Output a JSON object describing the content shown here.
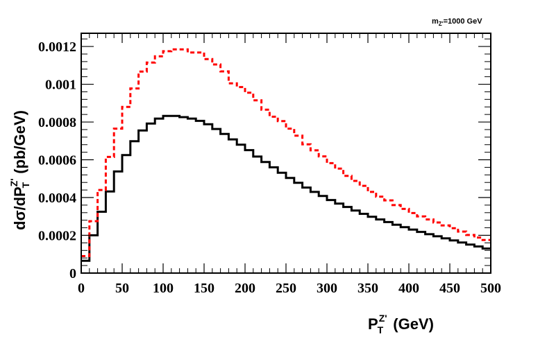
{
  "chart_data": {
    "type": "line",
    "style": "step-histogram",
    "annotation": {
      "main": "m",
      "sub": "Z'",
      "rest": "=1000 GeV"
    },
    "xlabel": {
      "main": "P",
      "sup": "Z'",
      "sub": "T",
      "rest": " (GeV)"
    },
    "ylabel": {
      "pre": "dσ/dP",
      "sup": "Z'",
      "sub": "T",
      "rest": " (pb/GeV)"
    },
    "xlim": [
      0,
      500
    ],
    "ylim": [
      0,
      0.00127
    ],
    "x_ticks": [
      "0",
      "50",
      "100",
      "150",
      "200",
      "250",
      "300",
      "350",
      "400",
      "450",
      "500"
    ],
    "y_ticks": [
      "0",
      "0.0002",
      "0.0004",
      "0.0006",
      "0.0008",
      "0.001",
      "0.0012"
    ],
    "bin_edges": [
      0,
      10,
      20,
      30,
      40,
      50,
      60,
      70,
      80,
      90,
      100,
      110,
      120,
      130,
      140,
      150,
      160,
      170,
      180,
      190,
      200,
      210,
      220,
      230,
      240,
      250,
      260,
      270,
      280,
      290,
      300,
      310,
      320,
      330,
      340,
      350,
      360,
      370,
      380,
      390,
      400,
      410,
      420,
      430,
      440,
      450,
      460,
      470,
      480,
      490,
      500
    ],
    "series": [
      {
        "name": "solid",
        "color": "#000000",
        "dash": "solid",
        "values": [
          6.5e-05,
          0.0002,
          0.000325,
          0.000432,
          0.000538,
          0.000625,
          0.000698,
          0.000755,
          0.000792,
          0.000818,
          0.000832,
          0.000832,
          0.000826,
          0.000818,
          0.000806,
          0.000788,
          0.000763,
          0.000737,
          0.000708,
          0.00068,
          0.000651,
          0.000617,
          0.000588,
          0.00056,
          0.000531,
          0.000504,
          0.000478,
          0.000453,
          0.00043,
          0.000408,
          0.000387,
          0.000368,
          0.00035,
          0.000331,
          0.000314,
          0.000298,
          0.000284,
          0.00027,
          0.000256,
          0.000243,
          0.00023,
          0.000218,
          0.000206,
          0.000195,
          0.000184,
          0.000173,
          0.000162,
          0.000151,
          0.000141,
          0.00013
        ]
      },
      {
        "name": "dashed",
        "color": "#ff0000",
        "dash": "dashed",
        "values": [
          9e-05,
          0.000275,
          0.00044,
          0.000615,
          0.000765,
          0.00088,
          0.000978,
          0.001067,
          0.001115,
          0.001148,
          0.001175,
          0.001185,
          0.001185,
          0.001168,
          0.001168,
          0.001133,
          0.001105,
          0.001068,
          0.001005,
          0.000985,
          0.000955,
          0.000915,
          0.000865,
          0.000828,
          0.000805,
          0.000765,
          0.000728,
          0.000682,
          0.00065,
          0.000618,
          0.000582,
          0.000553,
          0.000515,
          0.000488,
          0.000462,
          0.00043,
          0.000405,
          0.000385,
          0.00036,
          0.00034,
          0.000318,
          0.0003,
          0.000284,
          0.000268,
          0.000252,
          0.000238,
          0.00022,
          0.000202,
          0.000188,
          0.000175
        ]
      }
    ]
  }
}
